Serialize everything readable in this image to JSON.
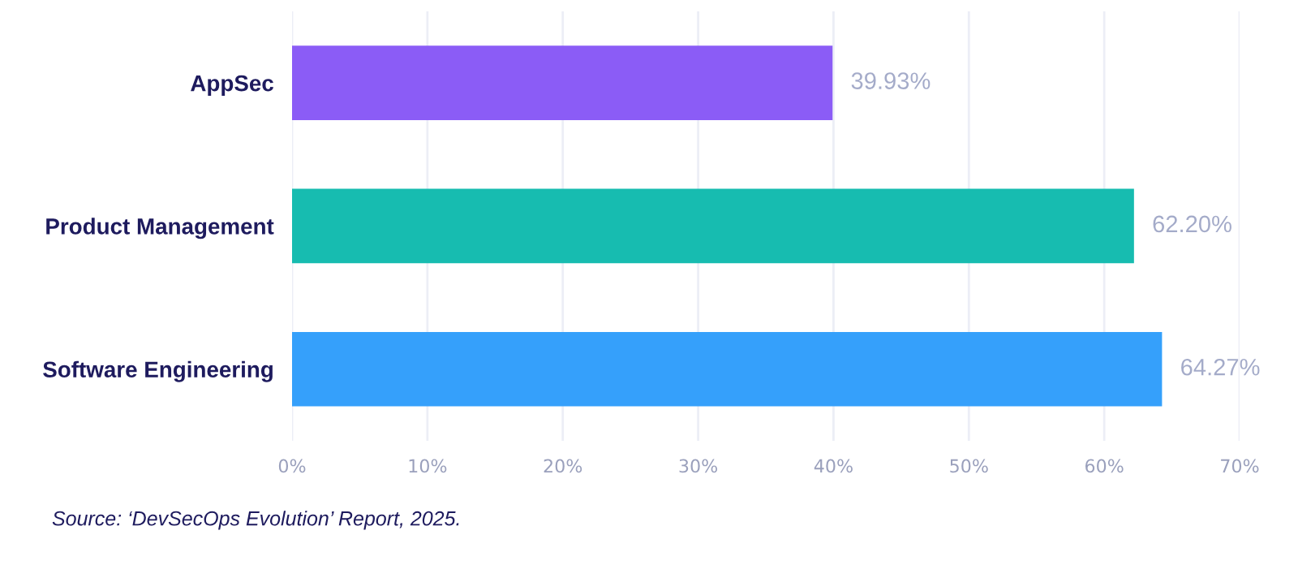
{
  "chart_data": {
    "type": "bar",
    "orientation": "horizontal",
    "categories": [
      "AppSec",
      "Product Management",
      "Software Engineering"
    ],
    "values": [
      39.93,
      62.2,
      64.27
    ],
    "colors": [
      "#8b5cf6",
      "#17bcb0",
      "#35a0fb"
    ],
    "value_labels": [
      "39.93%",
      "62.20%",
      "64.27%"
    ],
    "xlim": [
      0,
      70
    ],
    "xticks": [
      {
        "value": 0,
        "label": "0%"
      },
      {
        "value": 10,
        "label": "10%"
      },
      {
        "value": 20,
        "label": "20%"
      },
      {
        "value": 30,
        "label": "30%"
      },
      {
        "value": 40,
        "label": "40%"
      },
      {
        "value": 50,
        "label": "50%"
      },
      {
        "value": 60,
        "label": "60%"
      },
      {
        "value": 70,
        "label": "70%"
      }
    ],
    "grid": "x",
    "annotations": [
      "Source: ‘DevSecOps Evolution’ Report, 2025."
    ]
  }
}
